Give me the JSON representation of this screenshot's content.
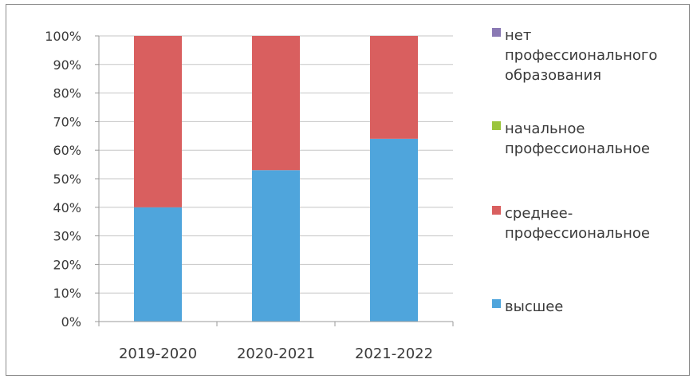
{
  "chart_data": {
    "type": "bar",
    "stacked": true,
    "percent": true,
    "categories": [
      "2019-2020",
      "2020-2021",
      "2021-2022"
    ],
    "series": [
      {
        "name": "высшее",
        "values": [
          40,
          53,
          64
        ],
        "color": "#4fa5dc"
      },
      {
        "name": "среднее-профессиональное",
        "values": [
          60,
          47,
          36
        ],
        "color": "#d95f5f"
      },
      {
        "name": "начальное профессиональное",
        "values": [
          0,
          0,
          0
        ],
        "color": "#9bc53d"
      },
      {
        "name": "нет профессионального образования",
        "values": [
          0,
          0,
          0
        ],
        "color": "#8a79b4"
      }
    ],
    "ylim": [
      0,
      100
    ],
    "yticks": [
      "0%",
      "10%",
      "20%",
      "30%",
      "40%",
      "50%",
      "60%",
      "70%",
      "80%",
      "90%",
      "100%"
    ],
    "grid": true,
    "legend_position": "right",
    "legend": [
      {
        "lines": [
          "нет",
          "профессионального",
          "образования"
        ],
        "color": "#8a79b4"
      },
      {
        "lines": [
          "начальное",
          "профессиональное"
        ],
        "color": "#9bc53d"
      },
      {
        "lines": [
          "среднее-",
          "профессиональное"
        ],
        "color": "#d95f5f"
      },
      {
        "lines": [
          "высшее"
        ],
        "color": "#4fa5dc"
      }
    ]
  }
}
